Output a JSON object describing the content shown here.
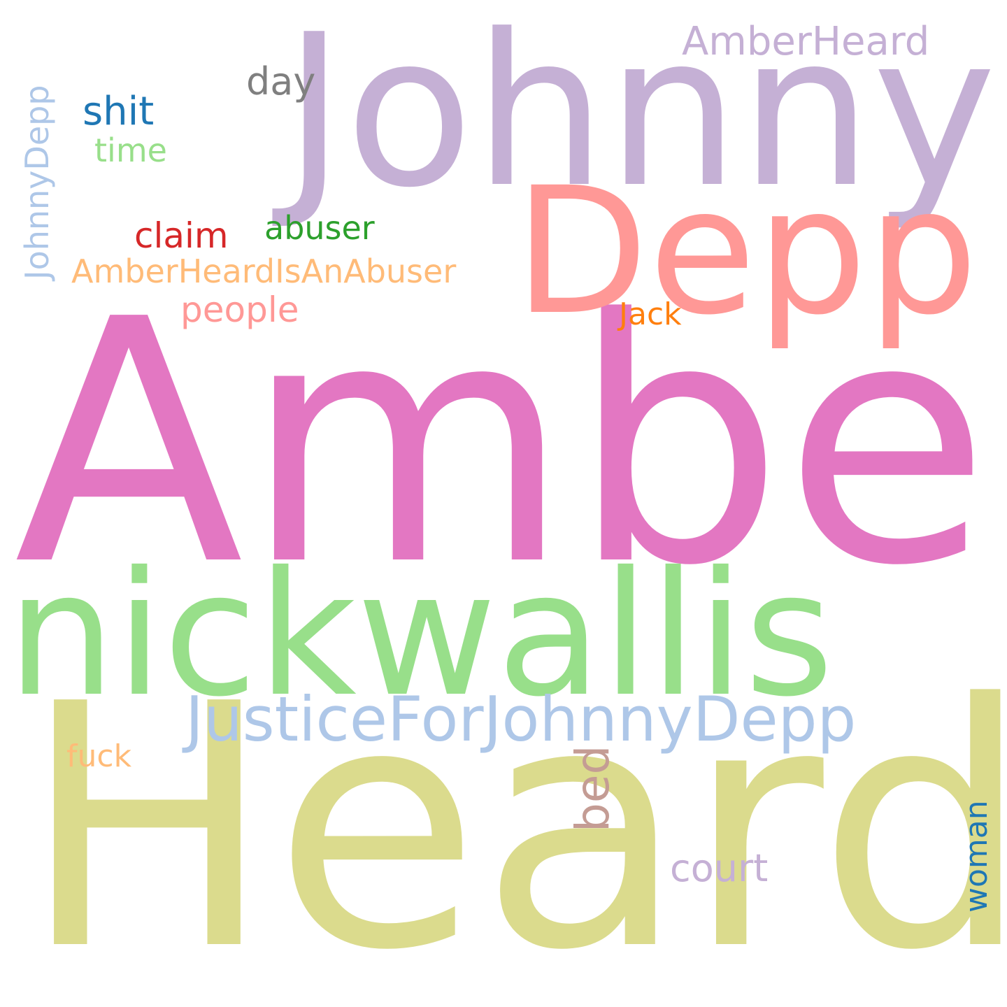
{
  "words": [
    {
      "text": "Amber",
      "color": "#e377c2"
    },
    {
      "text": "Heard",
      "color": "#dbdb8d"
    },
    {
      "text": "Johnny",
      "color": "#c5b0d5"
    },
    {
      "text": "Depp",
      "color": "#ff9896"
    },
    {
      "text": "nickwallis",
      "color": "#98df8a"
    },
    {
      "text": "JusticeForJohnnyDepp",
      "color": "#aec7e8"
    },
    {
      "text": "AmberHeard",
      "color": "#c5b0d5"
    },
    {
      "text": "day",
      "color": "#7f7f7f"
    },
    {
      "text": "shit",
      "color": "#1f77b4"
    },
    {
      "text": "time",
      "color": "#98df8a"
    },
    {
      "text": "JohnnyDepp",
      "color": "#aec7e8"
    },
    {
      "text": "claim",
      "color": "#d62728"
    },
    {
      "text": "abuser",
      "color": "#2ca02c"
    },
    {
      "text": "AmberHeardIsAnAbuser",
      "color": "#ffbb78"
    },
    {
      "text": "people",
      "color": "#ff9896"
    },
    {
      "text": "Jack",
      "color": "#ff7f0e"
    },
    {
      "text": "fuck",
      "color": "#ffbb78"
    },
    {
      "text": "bed",
      "color": "#c49c94"
    },
    {
      "text": "court",
      "color": "#c5b0d5"
    },
    {
      "text": "woman",
      "color": "#1f77b4"
    }
  ]
}
